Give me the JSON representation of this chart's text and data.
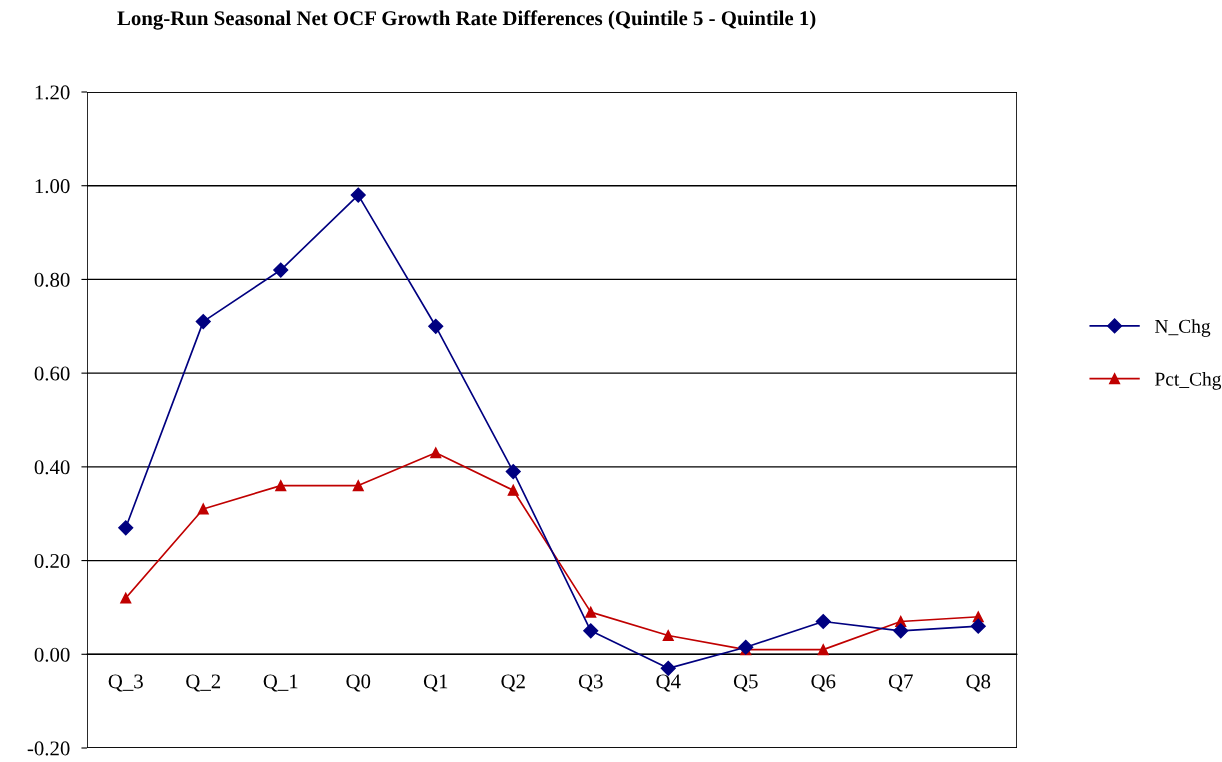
{
  "chart_data": {
    "type": "line",
    "title": "Long-Run Seasonal Net OCF Growth Rate Differences (Quintile 5 - Quintile 1)",
    "categories": [
      "Q_3",
      "Q_2",
      "Q_1",
      "Q0",
      "Q1",
      "Q2",
      "Q3",
      "Q4",
      "Q5",
      "Q6",
      "Q7",
      "Q8"
    ],
    "series": [
      {
        "name": "N_Chg",
        "color": "#000080",
        "marker": "diamond",
        "values": [
          0.27,
          0.71,
          0.82,
          0.98,
          0.7,
          0.39,
          0.05,
          -0.03,
          0.015,
          0.07,
          0.05,
          0.06
        ]
      },
      {
        "name": "Pct_Chg",
        "color": "#c00000",
        "marker": "triangle",
        "values": [
          0.12,
          0.31,
          0.36,
          0.36,
          0.43,
          0.35,
          0.09,
          0.04,
          0.01,
          0.01,
          0.07,
          0.08
        ]
      }
    ],
    "ylim": [
      -0.2,
      1.2
    ],
    "yticks": [
      {
        "value": -0.2,
        "label": "-0.20"
      },
      {
        "value": 0,
        "label": "0.00"
      },
      {
        "value": 0.2,
        "label": "0.20"
      },
      {
        "value": 0.4,
        "label": "0.40"
      },
      {
        "value": 0.6,
        "label": "0.60"
      },
      {
        "value": 0.8,
        "label": "0.80"
      },
      {
        "value": 1.0,
        "label": "1.00"
      },
      {
        "value": 1.2,
        "label": "1.20"
      }
    ],
    "grid": "y",
    "legend": "right",
    "line_style": "solid"
  }
}
